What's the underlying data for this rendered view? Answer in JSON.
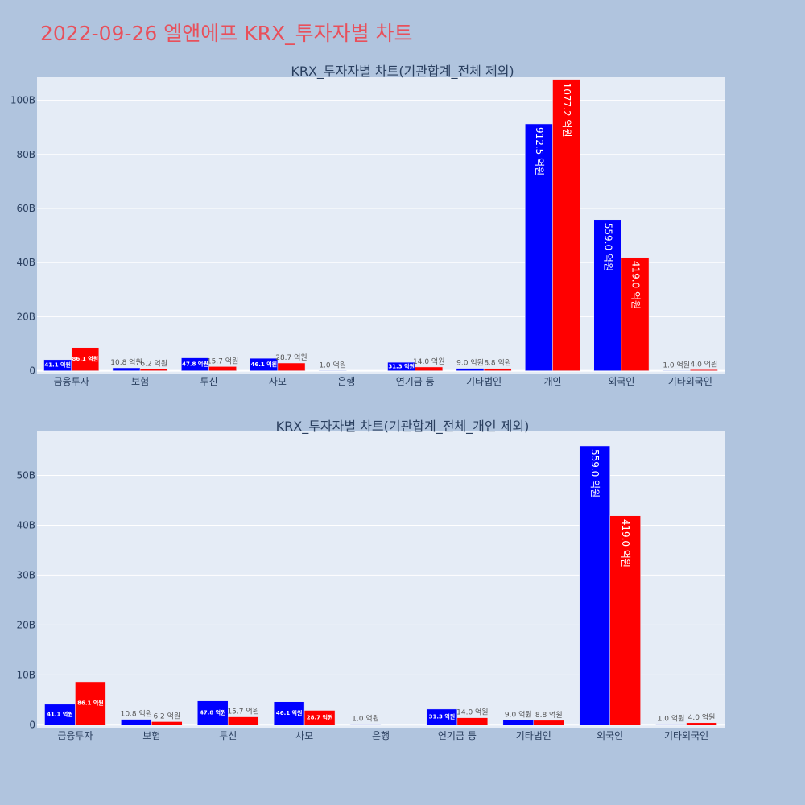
{
  "title": "2022-09-26 엘앤에프 KRX_투자자별 차트",
  "chart_data": [
    {
      "type": "bar",
      "title": "KRX_투자자별 차트(기관합계_전체 제외)",
      "categories": [
        "금융투자",
        "보험",
        "투신",
        "사모",
        "은행",
        "연기금 등",
        "기타법인",
        "개인",
        "외국인",
        "기타외국인"
      ],
      "series": [
        {
          "color": "#0000ff",
          "values": [
            4.11,
            1.08,
            4.78,
            4.61,
            0.1,
            3.13,
            0.9,
            91.25,
            55.9,
            0.1
          ],
          "labels": [
            "41.1 억원",
            "10.8 억원",
            "47.8 억원",
            "46.1 억원",
            "1.0 억원",
            "31.3 억원",
            "9.0 억원",
            "912.5 억원",
            "559.0 억원",
            "1.0 억원"
          ]
        },
        {
          "color": "#ff0000",
          "values": [
            8.61,
            0.62,
            1.57,
            2.87,
            0,
            1.4,
            0.88,
            107.72,
            41.9,
            0.4
          ],
          "labels": [
            "86.1 억원",
            "6.2 억원",
            "15.7 억원",
            "28.7 억원",
            "",
            "14.0 억원",
            "8.8 억원",
            "1077.2 억원",
            "419.0 억원",
            "4.0 억원"
          ]
        }
      ],
      "yticks": [
        "0",
        "20B",
        "40B",
        "60B",
        "80B",
        "100B"
      ],
      "ytick_values": [
        0,
        20,
        40,
        60,
        80,
        100
      ],
      "ylim": [
        -1,
        108.5
      ]
    },
    {
      "type": "bar",
      "title": "KRX_투자자별 차트(기관합계_전체_개인 제외)",
      "categories": [
        "금융투자",
        "보험",
        "투신",
        "사모",
        "은행",
        "연기금 등",
        "기타법인",
        "외국인",
        "기타외국인"
      ],
      "series": [
        {
          "color": "#0000ff",
          "values": [
            4.11,
            1.08,
            4.78,
            4.61,
            0.1,
            3.13,
            0.9,
            55.9,
            0.1
          ],
          "labels": [
            "41.1 억원",
            "10.8 억원",
            "47.8 억원",
            "46.1 억원",
            "1.0 억원",
            "31.3 억원",
            "9.0 억원",
            "559.0 억원",
            "1.0 억원"
          ]
        },
        {
          "color": "#ff0000",
          "values": [
            8.61,
            0.62,
            1.57,
            2.87,
            0,
            1.4,
            0.88,
            41.9,
            0.4
          ],
          "labels": [
            "86.1 억원",
            "6.2 억원",
            "15.7 억원",
            "28.7 억원",
            "",
            "14.0 억원",
            "8.8 억원",
            "419.0 억원",
            "4.0 억원"
          ]
        }
      ],
      "yticks": [
        "0",
        "10B",
        "20B",
        "30B",
        "40B",
        "50B"
      ],
      "ytick_values": [
        0,
        10,
        20,
        30,
        40,
        50
      ],
      "ylim": [
        -0.6,
        58.8
      ]
    }
  ]
}
